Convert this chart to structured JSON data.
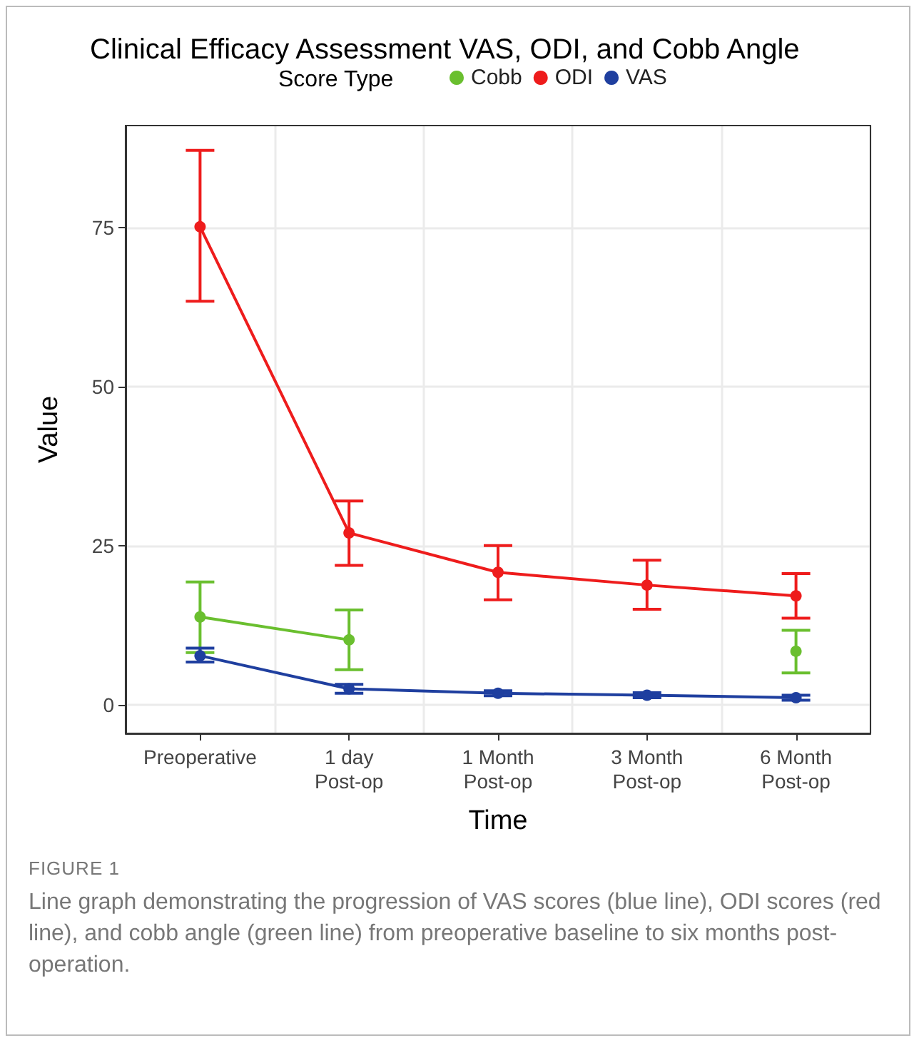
{
  "chart_data": {
    "type": "line",
    "title": "Clinical Efficacy Assessment VAS, ODI, and Cobb Angle",
    "xlabel": "Time",
    "ylabel": "Value",
    "legend_title": "Score Type",
    "categories": [
      "Preoperative",
      "1 day\nPost-op",
      "1 Month\nPost-op",
      "3 Month\nPost-op",
      "6 Month\nPost-op"
    ],
    "series": [
      {
        "name": "Cobb",
        "color": "#6abf2f",
        "values": [
          13.8,
          10.2,
          null,
          null,
          8.4
        ],
        "errors": [
          [
            8.2,
            19.3
          ],
          [
            5.5,
            14.9
          ],
          null,
          null,
          [
            5.0,
            11.7
          ]
        ]
      },
      {
        "name": "ODI",
        "color": "#ee1c1c",
        "values": [
          75.1,
          27.0,
          20.8,
          18.8,
          17.1
        ],
        "errors": [
          [
            63.4,
            87.1
          ],
          [
            21.9,
            32.0
          ],
          [
            16.5,
            25.0
          ],
          [
            15.0,
            22.7
          ],
          [
            13.6,
            20.6
          ]
        ]
      },
      {
        "name": "VAS",
        "color": "#1f3f9f",
        "values": [
          7.7,
          2.5,
          1.8,
          1.5,
          1.1
        ],
        "errors": [
          [
            6.7,
            8.9
          ],
          [
            1.8,
            3.2
          ],
          [
            1.4,
            2.2
          ],
          [
            1.1,
            1.9
          ],
          [
            0.7,
            1.5
          ]
        ]
      }
    ],
    "ylim": [
      -4.5,
      91
    ],
    "yticks": [
      0,
      25,
      50,
      75
    ],
    "grid": true,
    "legend": "top",
    "marker": "circle",
    "line_style": "solid",
    "annotations": [
      "FIGURE 1",
      "Line graph demonstrating the progression of VAS scores (blue line), ODI scores (red line), and cobb angle (green line) from preoperative baseline to six months post-operation."
    ]
  }
}
